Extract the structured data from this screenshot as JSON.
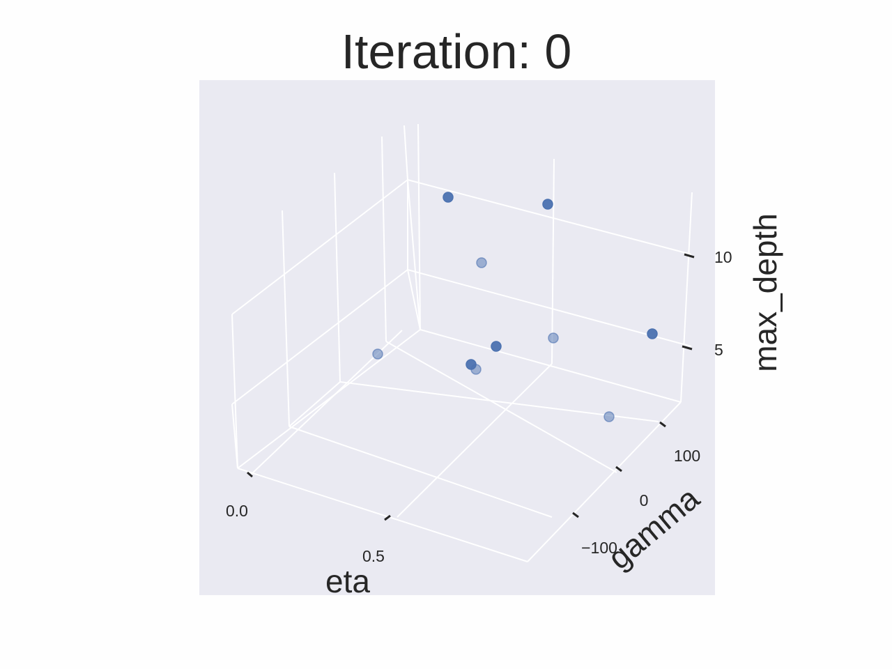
{
  "chart_data": {
    "type": "scatter",
    "title": "Iteration: 0",
    "xlabel": "eta",
    "ylabel": "gamma",
    "zlabel": "max_depth",
    "x_ticks": [
      "0.0",
      "0.5"
    ],
    "y_ticks": [
      "−100",
      "0",
      "100"
    ],
    "z_ticks": [
      "5",
      "10"
    ],
    "grid": true,
    "colors": {
      "background": "#eaeaf2",
      "grid": "#ffffff",
      "point": "#4c72b0",
      "page": "#fefefe"
    },
    "points": [
      {
        "eta": 0.35,
        "gamma": -40,
        "max_depth": 13,
        "depth_shade": "front"
      },
      {
        "eta": 0.75,
        "gamma": 40,
        "max_depth": 14,
        "depth_shade": "front"
      },
      {
        "eta": 0.45,
        "gamma": 0,
        "max_depth": 10,
        "depth_shade": "back"
      },
      {
        "eta": 0.9,
        "gamma": 200,
        "max_depth": 9,
        "depth_shade": "front"
      },
      {
        "eta": 0.5,
        "gamma": -60,
        "max_depth": 6,
        "depth_shade": "front"
      },
      {
        "eta": 0.55,
        "gamma": 40,
        "max_depth": 7,
        "depth_shade": "back"
      },
      {
        "eta": 0.35,
        "gamma": -160,
        "max_depth": 5,
        "depth_shade": "back"
      },
      {
        "eta": 0.45,
        "gamma": -80,
        "max_depth": 5,
        "depth_shade": "front"
      },
      {
        "eta": 0.48,
        "gamma": -80,
        "max_depth": 5,
        "depth_shade": "back"
      },
      {
        "eta": 0.85,
        "gamma": 60,
        "max_depth": 2,
        "depth_shade": "back"
      }
    ]
  }
}
